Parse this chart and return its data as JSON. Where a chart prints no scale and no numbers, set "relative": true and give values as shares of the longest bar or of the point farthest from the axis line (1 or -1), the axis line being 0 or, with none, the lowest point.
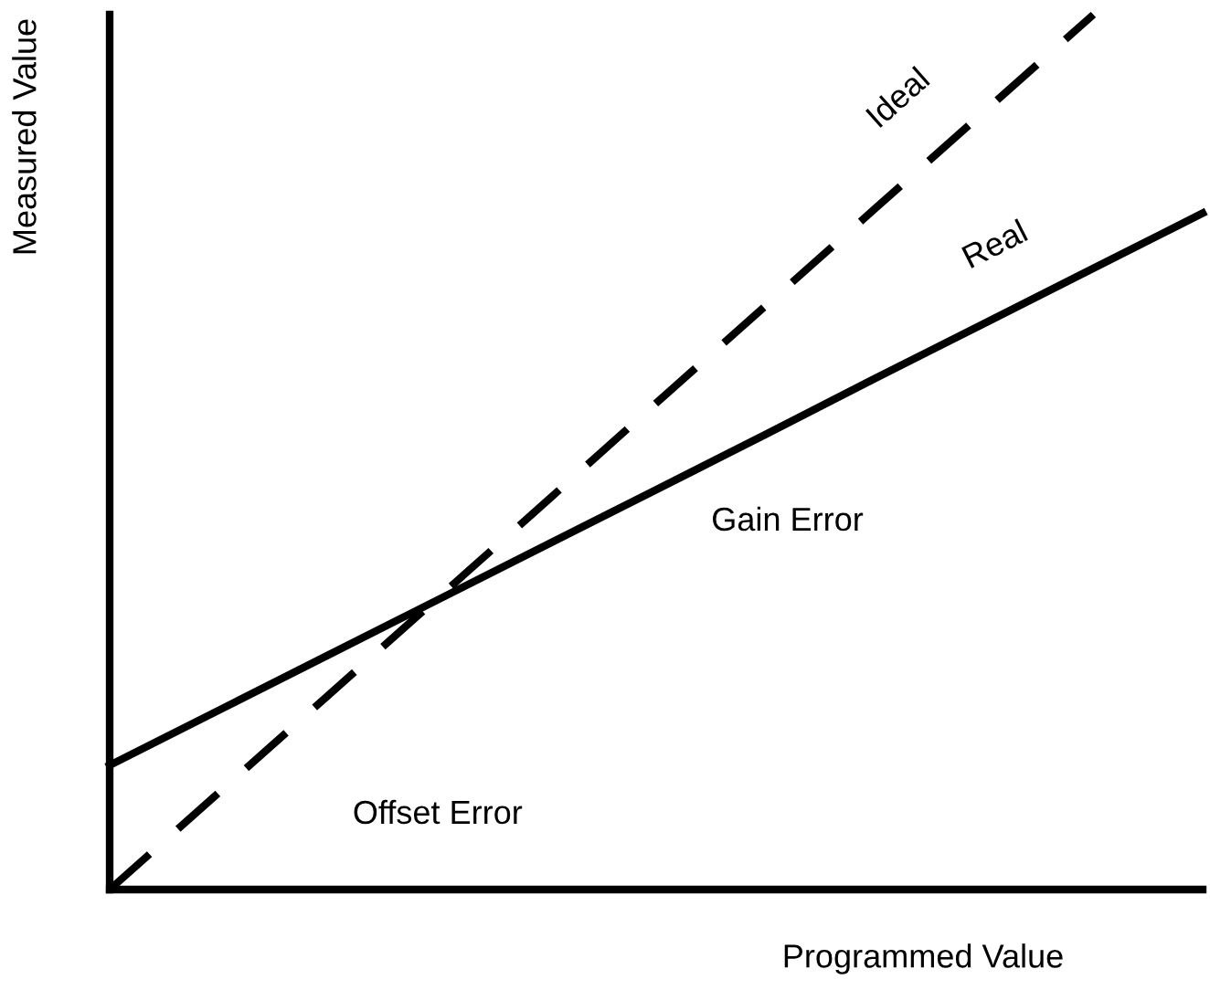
{
  "chart_data": {
    "type": "line",
    "relative": true,
    "xlabel": "Programmed Value",
    "ylabel": "Measured Value",
    "categories": [
      null,
      null,
      null,
      null,
      null,
      null,
      null,
      null,
      null,
      null,
      null
    ],
    "series": [
      {
        "name": "Ideal",
        "color": "#000000",
        "line_style": "dashed",
        "values": [
          0,
          0.111,
          0.222,
          0.333,
          0.444,
          0.556,
          0.667,
          0.778,
          0.889,
          1,
          null
        ]
      },
      {
        "name": "Real",
        "color": "#000000",
        "line_style": "solid",
        "values": [
          0.142,
          0.205,
          0.268,
          0.331,
          0.394,
          0.457,
          0.52,
          0.584,
          0.647,
          0.71,
          0.773
        ]
      }
    ],
    "annotations": [
      "Gain Error",
      "Offset Error"
    ],
    "legend": false,
    "marker": "none"
  }
}
